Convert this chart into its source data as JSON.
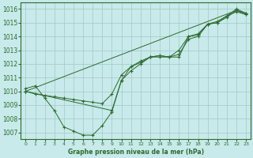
{
  "title": "Graphe pression niveau de la mer (hPa)",
  "bg_color": "#c8eaea",
  "grid_color": "#a0c8c8",
  "line_color": "#2d6a2d",
  "xlim": [
    -0.5,
    23.5
  ],
  "ylim": [
    1006.5,
    1016.5
  ],
  "xticks": [
    0,
    1,
    2,
    3,
    4,
    5,
    6,
    7,
    8,
    9,
    10,
    11,
    12,
    13,
    14,
    15,
    16,
    17,
    18,
    19,
    20,
    21,
    22,
    23
  ],
  "yticks": [
    1007,
    1008,
    1009,
    1010,
    1011,
    1012,
    1013,
    1014,
    1015,
    1016
  ],
  "tick_color": "#2d6a2d",
  "title_color": "#2d6a2d",
  "series": [
    {
      "x": [
        0,
        1,
        2,
        3,
        4,
        5,
        6,
        7,
        8,
        9,
        10,
        11,
        12,
        13,
        14,
        15,
        16,
        17,
        18,
        19,
        20,
        21,
        22,
        23
      ],
      "y": [
        1010.2,
        1010.4,
        1009.5,
        1008.6,
        1007.4,
        1007.1,
        1006.8,
        1006.8,
        1007.5,
        1008.5,
        1010.8,
        1011.8,
        1012.1,
        1012.5,
        1012.5,
        1012.5,
        1012.7,
        1013.8,
        1014.0,
        1014.9,
        1015.0,
        1015.5,
        1015.8,
        1015.6
      ]
    },
    {
      "x": [
        0,
        1,
        2,
        3,
        4,
        5,
        6,
        7,
        8,
        9,
        10,
        11,
        12,
        13,
        14,
        15,
        16,
        17,
        18,
        19,
        20,
        21,
        22,
        23
      ],
      "y": [
        1010.0,
        1009.8,
        1009.7,
        1009.6,
        1009.5,
        1009.4,
        1009.3,
        1009.2,
        1009.1,
        1009.8,
        1011.2,
        1011.8,
        1012.2,
        1012.5,
        1012.6,
        1012.5,
        1013.0,
        1014.0,
        1014.2,
        1014.9,
        1015.1,
        1015.5,
        1016.0,
        1015.7
      ]
    },
    {
      "x": [
        0,
        9,
        10,
        11,
        12,
        13,
        14,
        15,
        16,
        17,
        18,
        19,
        20,
        21,
        22,
        23
      ],
      "y": [
        1010.0,
        1008.6,
        1010.8,
        1011.5,
        1012.0,
        1012.5,
        1012.6,
        1012.5,
        1012.5,
        1014.0,
        1014.1,
        1014.9,
        1015.0,
        1015.4,
        1015.9,
        1015.6
      ]
    },
    {
      "x": [
        0,
        22,
        23
      ],
      "y": [
        1010.0,
        1015.9,
        1015.7
      ]
    }
  ]
}
